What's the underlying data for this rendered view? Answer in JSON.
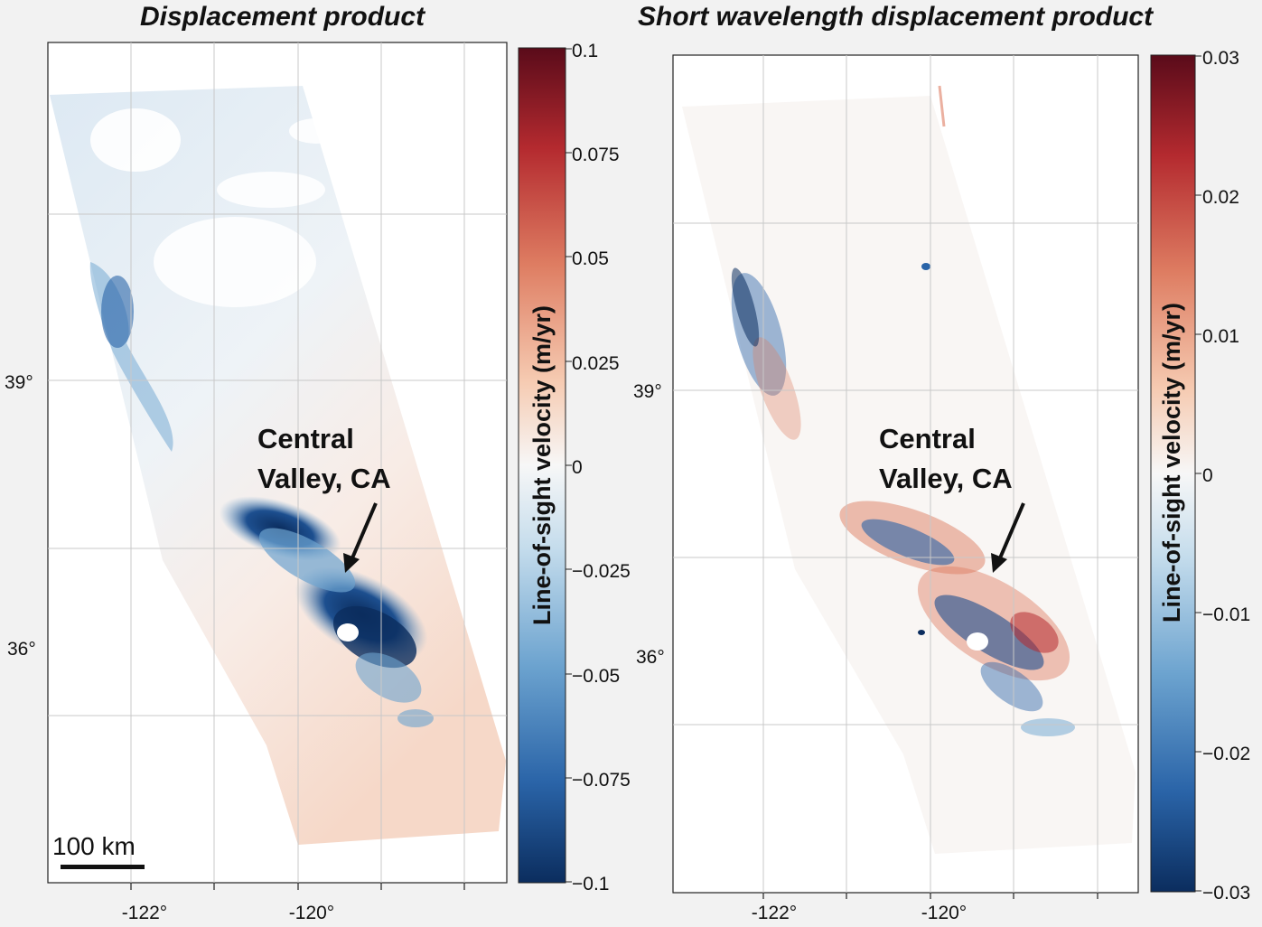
{
  "panels": [
    {
      "title": "Displacement product",
      "colorbar": {
        "label": "Line-of-sight velocity (m/yr)",
        "ticks": [
          "0.1",
          "0.075",
          "0.05",
          "0.025",
          "0",
          "−0.025",
          "−0.05",
          "−0.075",
          "−0.1"
        ],
        "range": [
          -0.1,
          0.1
        ]
      },
      "x_ticks": [
        "-122°",
        "-120°"
      ],
      "y_ticks": [
        "39°",
        "36°"
      ],
      "annotation": [
        "Central",
        "Valley, CA"
      ],
      "scale_bar": "100 km"
    },
    {
      "title": "Short wavelength displacement product",
      "colorbar": {
        "label": "Line-of-sight velocity (m/yr)",
        "ticks": [
          "0.03",
          "0.02",
          "0.01",
          "0",
          "−0.01",
          "−0.02",
          "−0.03"
        ],
        "range": [
          -0.03,
          0.03
        ]
      },
      "x_ticks": [
        "-122°",
        "-120°"
      ],
      "y_ticks": [
        "39°",
        "36°"
      ],
      "annotation": [
        "Central",
        "Valley, CA"
      ]
    }
  ],
  "colormap": {
    "name": "RdBu_r",
    "stops": [
      "#0b2d5e",
      "#2a64a8",
      "#6ca3cf",
      "#c4dcec",
      "#f7f7f7",
      "#f6cbb2",
      "#de7d62",
      "#b42a2f",
      "#5a0b1a"
    ]
  },
  "colors": {
    "map_background": "#ffffff",
    "grid": "#cccccc",
    "frame": "#222222"
  }
}
